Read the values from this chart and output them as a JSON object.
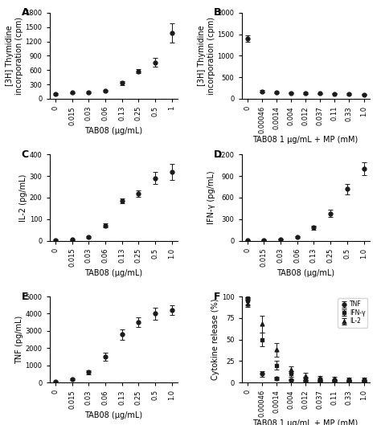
{
  "A": {
    "x": [
      0,
      0.015,
      0.03,
      0.06,
      0.13,
      0.25,
      0.5,
      1.0
    ],
    "y": [
      100,
      125,
      130,
      165,
      330,
      575,
      760,
      1380
    ],
    "yerr": [
      15,
      10,
      12,
      18,
      40,
      45,
      95,
      200
    ],
    "xlabel": "TAB08 (μg/mL)",
    "ylabel": "[3H] Thymidine\nincorporation (cpm)",
    "ylim": [
      0,
      1800
    ],
    "yticks": [
      0,
      300,
      600,
      900,
      1200,
      1500,
      1800
    ],
    "xtick_labels": [
      "0",
      "0.015",
      "0.03",
      "0.06",
      "0.13",
      "0.25",
      "0.5",
      "1"
    ],
    "label": "A"
  },
  "B": {
    "x": [
      0,
      1,
      2,
      3,
      4,
      5,
      6,
      7,
      8
    ],
    "y": [
      1400,
      175,
      150,
      135,
      130,
      120,
      115,
      110,
      100
    ],
    "yerr": [
      80,
      20,
      15,
      12,
      12,
      10,
      10,
      10,
      12
    ],
    "xlabel": "TAB08 1 μg/mL + MP (mM)",
    "ylabel": "[3H] Thymidine\nincorporation (cpm)",
    "ylim": [
      0,
      2000
    ],
    "yticks": [
      0,
      500,
      1000,
      1500,
      2000
    ],
    "xtick_labels": [
      "0",
      "0.00046",
      "0.0014",
      "0.004",
      "0.012",
      "0.037",
      "0.11",
      "0.33",
      "1.0"
    ],
    "label": "B"
  },
  "C": {
    "x": [
      0,
      0.015,
      0.03,
      0.06,
      0.13,
      0.25,
      0.5,
      1.0
    ],
    "y": [
      2,
      5,
      18,
      70,
      185,
      220,
      290,
      320
    ],
    "yerr": [
      2,
      2,
      4,
      10,
      12,
      15,
      28,
      38
    ],
    "xlabel": "TAB08 (μg/mL)",
    "ylabel": "IL-2 (pg/mL)",
    "ylim": [
      0,
      400
    ],
    "yticks": [
      0,
      100,
      200,
      300,
      400
    ],
    "xtick_labels": [
      "0",
      "0.015",
      "0.03",
      "0.06",
      "0.13",
      "0.25",
      "0.5",
      "1.0"
    ],
    "label": "C"
  },
  "D": {
    "x": [
      0,
      0.015,
      0.03,
      0.06,
      0.13,
      0.25,
      0.5,
      1.0
    ],
    "y": [
      5,
      10,
      20,
      50,
      180,
      380,
      720,
      1000
    ],
    "yerr": [
      3,
      5,
      8,
      15,
      28,
      50,
      75,
      90
    ],
    "xlabel": "TAB08 (μg/mL)",
    "ylabel": "IFN-γ (pg/mL)",
    "ylim": [
      0,
      1200
    ],
    "yticks": [
      0,
      300,
      600,
      900,
      1200
    ],
    "xtick_labels": [
      "0",
      "0.015",
      "0.03",
      "0.06",
      "0.13",
      "0.25",
      "0.5",
      "1.0"
    ],
    "label": "D"
  },
  "E": {
    "x": [
      0,
      0.015,
      0.03,
      0.06,
      0.13,
      0.25,
      0.5,
      1.0
    ],
    "y": [
      50,
      200,
      600,
      1500,
      2800,
      3500,
      4000,
      4200
    ],
    "yerr": [
      25,
      60,
      120,
      220,
      310,
      290,
      340,
      290
    ],
    "xlabel": "TAB08 (μg/mL)",
    "ylabel": "TNF (pg/mL)",
    "ylim": [
      0,
      5000
    ],
    "yticks": [
      0,
      1000,
      2000,
      3000,
      4000,
      5000
    ],
    "xtick_labels": [
      "0",
      "0.015",
      "0.03",
      "0.06",
      "0.13",
      "0.25",
      "0.5",
      "1.0"
    ],
    "label": "E"
  },
  "F": {
    "x_idx": [
      0,
      1,
      2,
      3,
      4,
      5,
      6,
      7,
      8
    ],
    "TNF": [
      98,
      10,
      5,
      3,
      2,
      2,
      2,
      2,
      2
    ],
    "IFNg": [
      95,
      50,
      20,
      10,
      5,
      4,
      3,
      3,
      3
    ],
    "IL2": [
      92,
      68,
      38,
      15,
      8,
      6,
      5,
      4,
      4
    ],
    "TNF_err": [
      3,
      3,
      2,
      1,
      1,
      1,
      1,
      1,
      1
    ],
    "IFNg_err": [
      4,
      8,
      5,
      3,
      2,
      2,
      1,
      1,
      1
    ],
    "IL2_err": [
      4,
      10,
      8,
      4,
      3,
      2,
      2,
      2,
      2
    ],
    "xlabel": "TAB08 1 μg/mL + MP (mM)",
    "ylabel": "Cytokine release (%)",
    "ylim": [
      0,
      100
    ],
    "yticks": [
      0,
      25,
      50,
      75,
      100
    ],
    "xtick_labels": [
      "0",
      "0.00046",
      "0.0014",
      "0.004",
      "0.012",
      "0.037",
      "0.11",
      "0.33",
      "1.0"
    ],
    "label": "F"
  },
  "line_color": "#1a1a1a",
  "marker": "o",
  "markersize": 3.5,
  "linewidth": 1.0,
  "fontsize_label": 7,
  "fontsize_tick": 6,
  "fontsize_panel": 9
}
